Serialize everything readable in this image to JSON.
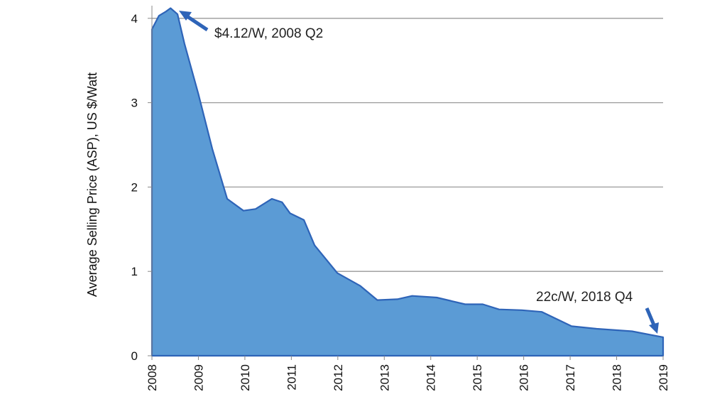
{
  "chart_data": {
    "type": "area",
    "title": "",
    "xlabel": "",
    "ylabel": "Average Selling Price (ASP),  US $/Watt",
    "xlim": [
      2008,
      2019
    ],
    "ylim": [
      0,
      4.2
    ],
    "x_ticks": [
      "2008",
      "2009",
      "2010",
      "2011",
      "2012",
      "2013",
      "2014",
      "2015",
      "2016",
      "2017",
      "2018",
      "2019"
    ],
    "y_ticks": [
      "0",
      "1",
      "2",
      "3",
      "4"
    ],
    "grid": "horizontal",
    "fill_color": "#5b9bd5",
    "line_color": "#2e64b8",
    "x": [
      2008.0,
      2008.15,
      2008.3,
      2008.4,
      2008.55,
      2008.7,
      2009.0,
      2009.3,
      2009.62,
      2009.97,
      2010.23,
      2010.58,
      2010.8,
      2010.97,
      2011.27,
      2011.5,
      2011.99,
      2012.48,
      2012.85,
      2013.28,
      2013.6,
      2014.13,
      2014.74,
      2015.12,
      2015.47,
      2015.96,
      2016.39,
      2017.03,
      2017.57,
      2018.33,
      2019.0
    ],
    "y": [
      3.87,
      4.03,
      4.08,
      4.12,
      4.05,
      3.7,
      3.1,
      2.45,
      1.86,
      1.72,
      1.74,
      1.86,
      1.82,
      1.69,
      1.61,
      1.31,
      0.98,
      0.83,
      0.66,
      0.67,
      0.71,
      0.69,
      0.61,
      0.61,
      0.55,
      0.54,
      0.52,
      0.35,
      0.32,
      0.29,
      0.22
    ],
    "annotations": [
      {
        "text": "$4.12/W, 2008 Q2",
        "x": 2008.4,
        "y": 4.12
      },
      {
        "text": "22c/W, 2018 Q4",
        "x": 2019.0,
        "y": 0.22
      }
    ]
  }
}
